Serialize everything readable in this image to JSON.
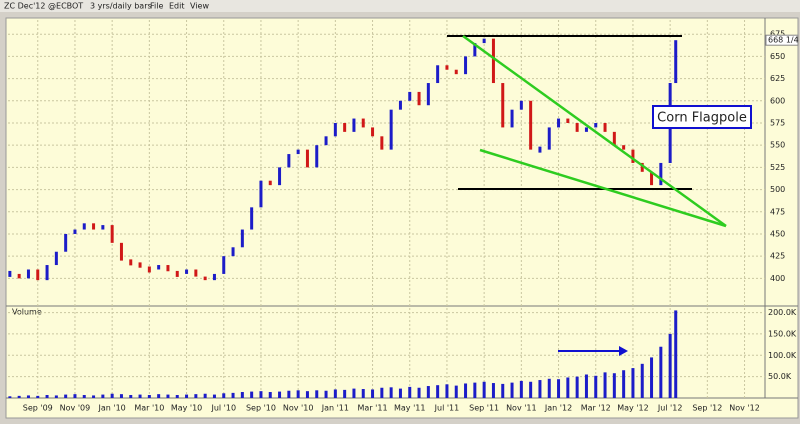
{
  "toolbar": [
    "ZC Dec'12 @ECBOT",
    "3 yrs/daily bars",
    "File",
    "Edit",
    "View"
  ],
  "chart_data": {
    "type": "price-volume",
    "annotation": "Corn Flagpole",
    "volume_label": "Volume",
    "last_price": {
      "value": 668.25,
      "label": "668 1/4"
    },
    "up_color": "#1c1cc8",
    "down_color": "#d01818",
    "volume_color": "#1c1cc8",
    "grid": true,
    "x": [
      -1.5,
      -1,
      -0.5,
      0,
      0.5,
      1,
      1.5,
      2,
      2.5,
      3,
      3.5,
      4,
      4.5,
      5,
      5.5,
      6,
      6.5,
      7,
      7.5,
      8,
      8.5,
      9,
      9.5,
      10,
      10.5,
      11,
      11.5,
      12,
      12.5,
      13,
      13.5,
      14,
      14.5,
      15,
      15.5,
      16,
      16.5,
      17,
      17.5,
      18,
      18.5,
      19,
      19.5,
      20,
      20.5,
      21,
      21.5,
      22,
      22.5,
      23,
      23.5,
      24,
      24.5,
      25,
      25.5,
      26,
      26.5,
      27,
      27.5,
      28,
      28.5,
      29,
      29.5,
      30,
      30.5,
      31,
      31.5,
      32,
      32.5,
      33,
      33.5,
      34,
      34.3
    ],
    "xlim": [
      -1.6,
      39.1
    ],
    "xticks": [
      {
        "value": 0,
        "label": "Sep '09"
      },
      {
        "value": 2,
        "label": "Nov '09"
      },
      {
        "value": 4,
        "label": "Jan '10"
      },
      {
        "value": 6,
        "label": "Mar '10"
      },
      {
        "value": 8,
        "label": "May '10"
      },
      {
        "value": 10,
        "label": "Jul '10"
      },
      {
        "value": 12,
        "label": "Sep '10"
      },
      {
        "value": 14,
        "label": "Nov '10"
      },
      {
        "value": 16,
        "label": "Jan '11"
      },
      {
        "value": 18,
        "label": "Mar '11"
      },
      {
        "value": 20,
        "label": "May '11"
      },
      {
        "value": 22,
        "label": "Jul '11"
      },
      {
        "value": 24,
        "label": "Sep '11"
      },
      {
        "value": 26,
        "label": "Nov '11"
      },
      {
        "value": 28,
        "label": "Jan '12"
      },
      {
        "value": 30,
        "label": "Mar '12"
      },
      {
        "value": 32,
        "label": "May '12"
      },
      {
        "value": 34,
        "label": "Jul '12"
      },
      {
        "value": 36,
        "label": "Sep '12"
      },
      {
        "value": 38,
        "label": "Nov '12"
      }
    ],
    "series": [
      {
        "name": "Price",
        "values": [
          405,
          400,
          410,
          398,
          415,
          430,
          450,
          455,
          462,
          455,
          460,
          440,
          420,
          418,
          412,
          410,
          415,
          408,
          405,
          410,
          402,
          398,
          405,
          425,
          435,
          455,
          480,
          510,
          505,
          525,
          540,
          545,
          525,
          550,
          560,
          575,
          565,
          580,
          570,
          560,
          545,
          590,
          600,
          610,
          595,
          620,
          640,
          635,
          630,
          650,
          665,
          670,
          620,
          570,
          590,
          600,
          545,
          545,
          570,
          580,
          575,
          565,
          570,
          575,
          565,
          550,
          545,
          530,
          520,
          505,
          530,
          620,
          668.25
        ]
      },
      {
        "name": "Volume",
        "axis": "y2",
        "values": [
          4000,
          5000,
          6000,
          5000,
          7000,
          6000,
          8000,
          9000,
          7000,
          6000,
          8000,
          10000,
          9000,
          7000,
          8000,
          7000,
          9000,
          8000,
          7000,
          8000,
          9000,
          10000,
          8000,
          11000,
          12000,
          14000,
          15000,
          16000,
          14000,
          15000,
          17000,
          18000,
          16000,
          18000,
          17000,
          20000,
          19000,
          22000,
          21000,
          20000,
          24000,
          25000,
          22000,
          26000,
          24000,
          28000,
          30000,
          32000,
          29000,
          34000,
          36000,
          38000,
          35000,
          33000,
          36000,
          40000,
          38000,
          42000,
          45000,
          44000,
          48000,
          50000,
          55000,
          52000,
          60000,
          58000,
          65000,
          70000,
          80000,
          95000,
          120000,
          150000,
          205000
        ]
      }
    ],
    "ylim": [
      370,
      691
    ],
    "yticks": [
      400,
      425,
      450,
      475,
      500,
      525,
      550,
      575,
      600,
      625,
      650,
      675
    ],
    "y2lim": [
      0,
      206000
    ],
    "y2ticks": [
      {
        "value": 50000,
        "label": "50.0K"
      },
      {
        "value": 100000,
        "label": "100.0K"
      },
      {
        "value": 150000,
        "label": "150.0K"
      },
      {
        "value": 200000,
        "label": "200.0K"
      }
    ]
  }
}
